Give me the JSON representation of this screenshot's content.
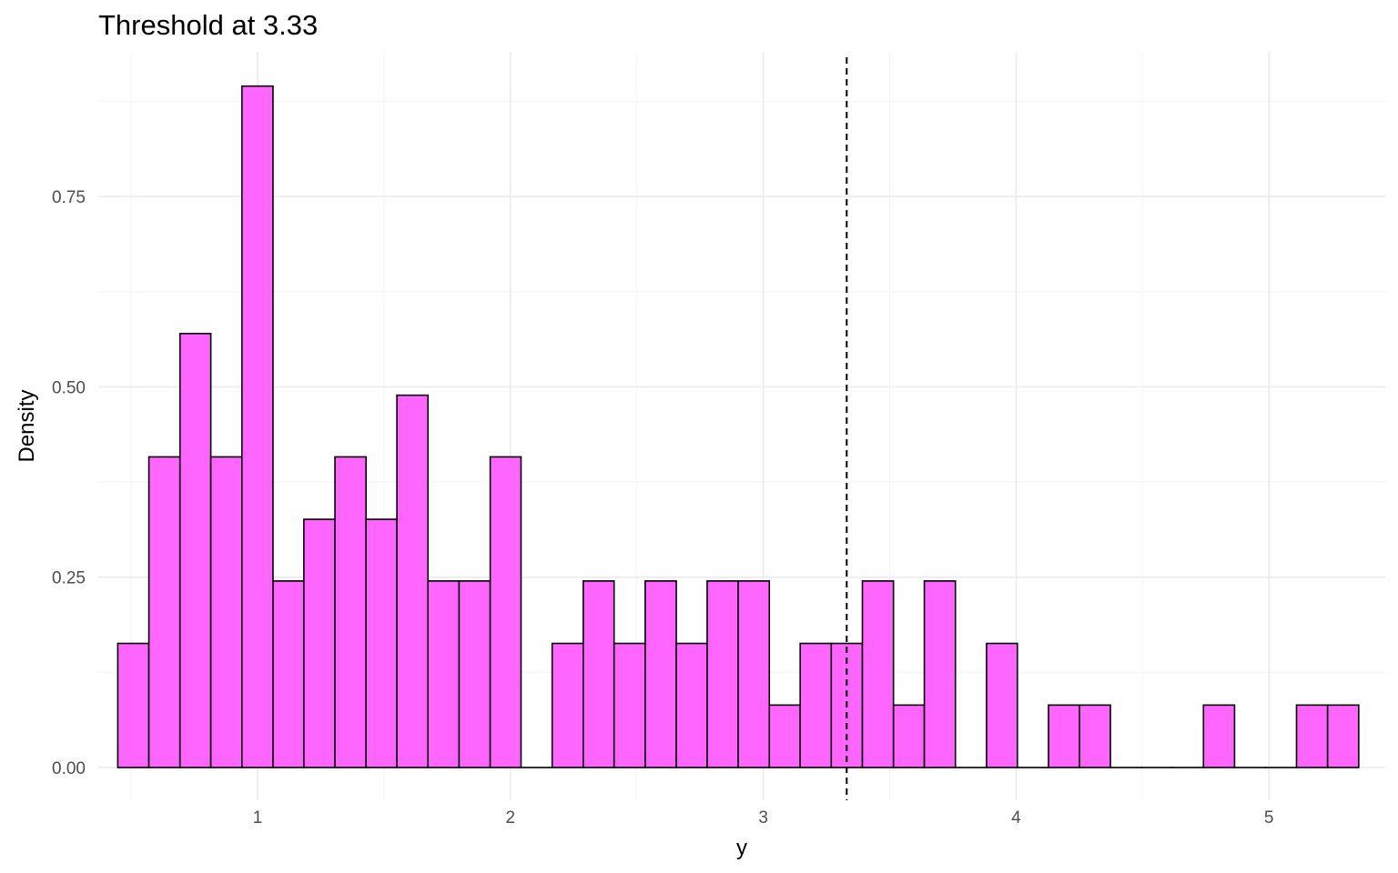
{
  "chart_data": {
    "type": "histogram",
    "title": "Threshold at 3.33",
    "xlabel": "y",
    "ylabel": "Density",
    "xlim": [
      0.37,
      5.46
    ],
    "ylim": [
      -0.043,
      0.94
    ],
    "x_ticks": [
      1,
      2,
      3,
      4,
      5
    ],
    "x_tick_labels": [
      "1",
      "2",
      "3",
      "4",
      "5"
    ],
    "y_ticks": [
      0,
      0.25,
      0.5,
      0.75
    ],
    "y_tick_labels": [
      "0.00",
      "0.25",
      "0.50",
      "0.75"
    ],
    "grid": true,
    "bin_width": 0.1227,
    "bins": [
      {
        "x0": 0.447,
        "x1": 0.57,
        "density": 0.163
      },
      {
        "x0": 0.57,
        "x1": 0.693,
        "density": 0.408
      },
      {
        "x0": 0.693,
        "x1": 0.815,
        "density": 0.57
      },
      {
        "x0": 0.815,
        "x1": 0.938,
        "density": 0.408
      },
      {
        "x0": 0.938,
        "x1": 1.061,
        "density": 0.895
      },
      {
        "x0": 1.061,
        "x1": 1.183,
        "density": 0.245
      },
      {
        "x0": 1.183,
        "x1": 1.306,
        "density": 0.326
      },
      {
        "x0": 1.306,
        "x1": 1.429,
        "density": 0.408
      },
      {
        "x0": 1.429,
        "x1": 1.551,
        "density": 0.326
      },
      {
        "x0": 1.551,
        "x1": 1.674,
        "density": 0.489
      },
      {
        "x0": 1.674,
        "x1": 1.797,
        "density": 0.245
      },
      {
        "x0": 1.797,
        "x1": 1.92,
        "density": 0.245
      },
      {
        "x0": 1.92,
        "x1": 2.042,
        "density": 0.408
      },
      {
        "x0": 2.042,
        "x1": 2.165,
        "density": 0.0
      },
      {
        "x0": 2.165,
        "x1": 2.288,
        "density": 0.163
      },
      {
        "x0": 2.288,
        "x1": 2.41,
        "density": 0.245
      },
      {
        "x0": 2.41,
        "x1": 2.533,
        "density": 0.163
      },
      {
        "x0": 2.533,
        "x1": 2.656,
        "density": 0.245
      },
      {
        "x0": 2.656,
        "x1": 2.778,
        "density": 0.163
      },
      {
        "x0": 2.778,
        "x1": 2.901,
        "density": 0.245
      },
      {
        "x0": 2.901,
        "x1": 3.024,
        "density": 0.245
      },
      {
        "x0": 3.024,
        "x1": 3.146,
        "density": 0.082
      },
      {
        "x0": 3.146,
        "x1": 3.269,
        "density": 0.163
      },
      {
        "x0": 3.269,
        "x1": 3.392,
        "density": 0.163
      },
      {
        "x0": 3.392,
        "x1": 3.515,
        "density": 0.245
      },
      {
        "x0": 3.515,
        "x1": 3.637,
        "density": 0.082
      },
      {
        "x0": 3.637,
        "x1": 3.76,
        "density": 0.245
      },
      {
        "x0": 3.76,
        "x1": 3.883,
        "density": 0.0
      },
      {
        "x0": 3.883,
        "x1": 4.005,
        "density": 0.163
      },
      {
        "x0": 4.005,
        "x1": 4.128,
        "density": 0.0
      },
      {
        "x0": 4.128,
        "x1": 4.251,
        "density": 0.082
      },
      {
        "x0": 4.251,
        "x1": 4.373,
        "density": 0.082
      },
      {
        "x0": 4.373,
        "x1": 4.496,
        "density": 0.0
      },
      {
        "x0": 4.496,
        "x1": 4.619,
        "density": 0.0
      },
      {
        "x0": 4.619,
        "x1": 4.741,
        "density": 0.0
      },
      {
        "x0": 4.741,
        "x1": 4.864,
        "density": 0.082
      },
      {
        "x0": 4.864,
        "x1": 4.987,
        "density": 0.0
      },
      {
        "x0": 4.987,
        "x1": 5.109,
        "density": 0.0
      },
      {
        "x0": 5.109,
        "x1": 5.232,
        "density": 0.082
      },
      {
        "x0": 5.232,
        "x1": 5.355,
        "density": 0.082
      }
    ],
    "threshold": 3.33,
    "threshold_line": "dashed",
    "bar_fill": "#ff66ff",
    "bar_stroke": "#000000",
    "grid_major_color": "#ebebeb",
    "grid_minor_color": "#f5f5f5"
  }
}
